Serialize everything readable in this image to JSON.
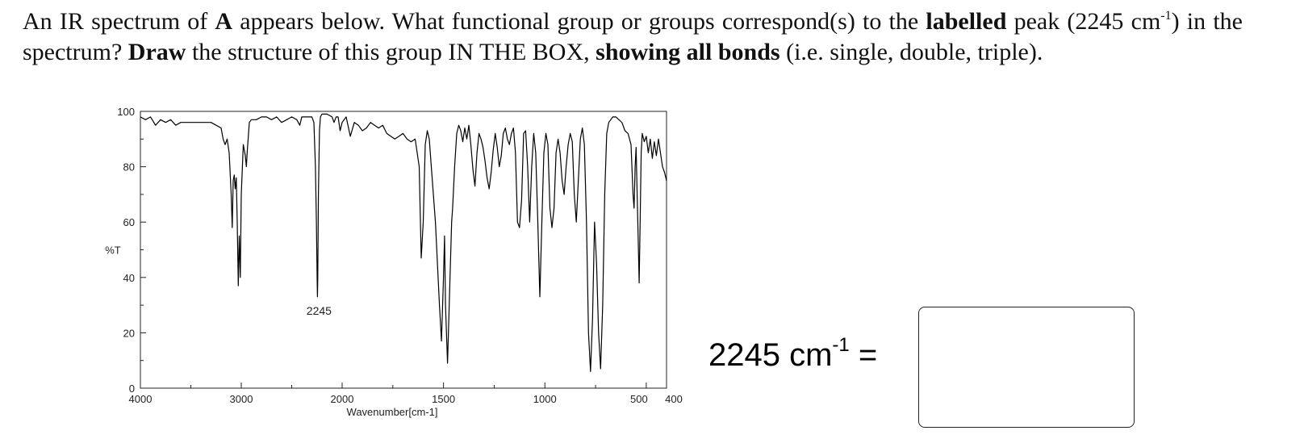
{
  "question": {
    "p1": "An IR spectrum of ",
    "compound": "A",
    "p2": " appears below.  What functional group or groups correspond(s) to the ",
    "bold1": "labelled",
    "p3": " peak (2245 cm",
    "sup": "-1",
    "p4": ") in the spectrum?  ",
    "bold2": "Draw",
    "p5": " the structure of this group IN THE BOX, ",
    "bold3": "showing all bonds",
    "p6": " (i.e. single, double, triple)."
  },
  "answer": {
    "label_main": "2245 cm",
    "label_sup": "-1",
    "label_tail": " =",
    "box_content": ""
  },
  "chart_data": {
    "type": "line",
    "title": "",
    "xlabel": "Wavenumber[cm-1]",
    "ylabel": "%T",
    "xlim": [
      4000,
      400
    ],
    "ylim": [
      0,
      100
    ],
    "x_ticks": [
      4000,
      3000,
      2000,
      1500,
      1000,
      500,
      400
    ],
    "x_tick_labels": [
      "4000",
      "3000",
      "2000",
      "1500",
      "1000",
      "500",
      "400"
    ],
    "y_ticks": [
      0,
      20,
      40,
      60,
      80,
      100
    ],
    "y_tick_labels": [
      "0",
      "20",
      "40",
      "60",
      "80",
      "100"
    ],
    "x_scale": "linear 4000-2000, expanded below 2000",
    "grid": false,
    "legend": "none",
    "annotations": [
      {
        "text": "2245",
        "x": 2245,
        "y": 33
      }
    ],
    "series": [
      {
        "color": "#000000",
        "points": [
          [
            4000,
            98
          ],
          [
            3950,
            97
          ],
          [
            3900,
            98
          ],
          [
            3850,
            95
          ],
          [
            3800,
            97
          ],
          [
            3750,
            96
          ],
          [
            3700,
            97
          ],
          [
            3650,
            95
          ],
          [
            3600,
            96
          ],
          [
            3500,
            96
          ],
          [
            3400,
            96
          ],
          [
            3300,
            96
          ],
          [
            3250,
            95
          ],
          [
            3200,
            94
          ],
          [
            3180,
            90
          ],
          [
            3160,
            88
          ],
          [
            3140,
            90
          ],
          [
            3120,
            85
          ],
          [
            3100,
            70
          ],
          [
            3090,
            58
          ],
          [
            3080,
            75
          ],
          [
            3070,
            77
          ],
          [
            3060,
            72
          ],
          [
            3050,
            76
          ],
          [
            3040,
            60
          ],
          [
            3030,
            37
          ],
          [
            3020,
            55
          ],
          [
            3010,
            40
          ],
          [
            3000,
            70
          ],
          [
            2980,
            88
          ],
          [
            2960,
            84
          ],
          [
            2950,
            80
          ],
          [
            2940,
            86
          ],
          [
            2920,
            96
          ],
          [
            2900,
            97
          ],
          [
            2850,
            97
          ],
          [
            2800,
            98
          ],
          [
            2750,
            98
          ],
          [
            2700,
            97
          ],
          [
            2650,
            98
          ],
          [
            2600,
            96
          ],
          [
            2550,
            97
          ],
          [
            2500,
            98
          ],
          [
            2450,
            97
          ],
          [
            2420,
            95
          ],
          [
            2400,
            98
          ],
          [
            2350,
            98
          ],
          [
            2300,
            98
          ],
          [
            2280,
            96
          ],
          [
            2265,
            80
          ],
          [
            2255,
            60
          ],
          [
            2248,
            40
          ],
          [
            2245,
            33
          ],
          [
            2242,
            40
          ],
          [
            2235,
            70
          ],
          [
            2225,
            93
          ],
          [
            2215,
            98
          ],
          [
            2200,
            99
          ],
          [
            2150,
            99
          ],
          [
            2100,
            98
          ],
          [
            2080,
            96
          ],
          [
            2060,
            98
          ],
          [
            2040,
            98
          ],
          [
            2020,
            93
          ],
          [
            2000,
            96
          ],
          [
            1980,
            98
          ],
          [
            1960,
            91
          ],
          [
            1940,
            96
          ],
          [
            1920,
            95
          ],
          [
            1900,
            93
          ],
          [
            1880,
            94
          ],
          [
            1860,
            96
          ],
          [
            1840,
            95
          ],
          [
            1820,
            94
          ],
          [
            1800,
            95
          ],
          [
            1780,
            92
          ],
          [
            1760,
            91
          ],
          [
            1740,
            90
          ],
          [
            1720,
            91
          ],
          [
            1700,
            92
          ],
          [
            1680,
            90
          ],
          [
            1660,
            89
          ],
          [
            1640,
            90
          ],
          [
            1620,
            80
          ],
          [
            1610,
            47
          ],
          [
            1600,
            60
          ],
          [
            1590,
            88
          ],
          [
            1580,
            93
          ],
          [
            1570,
            90
          ],
          [
            1560,
            80
          ],
          [
            1540,
            60
          ],
          [
            1520,
            30
          ],
          [
            1510,
            17
          ],
          [
            1500,
            40
          ],
          [
            1495,
            55
          ],
          [
            1490,
            30
          ],
          [
            1480,
            9
          ],
          [
            1470,
            35
          ],
          [
            1460,
            60
          ],
          [
            1455,
            65
          ],
          [
            1445,
            80
          ],
          [
            1435,
            92
          ],
          [
            1425,
            95
          ],
          [
            1415,
            93
          ],
          [
            1405,
            89
          ],
          [
            1395,
            94
          ],
          [
            1385,
            90
          ],
          [
            1375,
            95
          ],
          [
            1365,
            88
          ],
          [
            1355,
            79
          ],
          [
            1345,
            73
          ],
          [
            1335,
            85
          ],
          [
            1325,
            92
          ],
          [
            1315,
            90
          ],
          [
            1305,
            87
          ],
          [
            1295,
            82
          ],
          [
            1285,
            76
          ],
          [
            1275,
            72
          ],
          [
            1265,
            78
          ],
          [
            1255,
            86
          ],
          [
            1245,
            92
          ],
          [
            1235,
            87
          ],
          [
            1225,
            80
          ],
          [
            1215,
            84
          ],
          [
            1205,
            92
          ],
          [
            1195,
            94
          ],
          [
            1185,
            90
          ],
          [
            1175,
            88
          ],
          [
            1165,
            92
          ],
          [
            1155,
            94
          ],
          [
            1145,
            85
          ],
          [
            1135,
            60
          ],
          [
            1125,
            58
          ],
          [
            1115,
            68
          ],
          [
            1105,
            92
          ],
          [
            1095,
            93
          ],
          [
            1085,
            80
          ],
          [
            1075,
            60
          ],
          [
            1065,
            80
          ],
          [
            1055,
            92
          ],
          [
            1045,
            85
          ],
          [
            1035,
            60
          ],
          [
            1025,
            33
          ],
          [
            1015,
            60
          ],
          [
            1005,
            85
          ],
          [
            995,
            92
          ],
          [
            985,
            88
          ],
          [
            975,
            65
          ],
          [
            965,
            58
          ],
          [
            955,
            65
          ],
          [
            945,
            85
          ],
          [
            935,
            90
          ],
          [
            925,
            85
          ],
          [
            915,
            75
          ],
          [
            905,
            70
          ],
          [
            895,
            80
          ],
          [
            885,
            88
          ],
          [
            875,
            92
          ],
          [
            865,
            89
          ],
          [
            855,
            70
          ],
          [
            845,
            60
          ],
          [
            835,
            75
          ],
          [
            825,
            90
          ],
          [
            815,
            94
          ],
          [
            805,
            88
          ],
          [
            795,
            60
          ],
          [
            785,
            20
          ],
          [
            775,
            6
          ],
          [
            765,
            25
          ],
          [
            755,
            60
          ],
          [
            745,
            45
          ],
          [
            735,
            20
          ],
          [
            725,
            7
          ],
          [
            715,
            30
          ],
          [
            705,
            70
          ],
          [
            695,
            92
          ],
          [
            685,
            96
          ],
          [
            675,
            97
          ],
          [
            665,
            98
          ],
          [
            650,
            98
          ],
          [
            635,
            97
          ],
          [
            620,
            96
          ],
          [
            605,
            93
          ],
          [
            590,
            92
          ],
          [
            575,
            88
          ],
          [
            565,
            70
          ],
          [
            560,
            65
          ],
          [
            555,
            80
          ],
          [
            550,
            87
          ],
          [
            545,
            70
          ],
          [
            540,
            55
          ],
          [
            535,
            38
          ],
          [
            530,
            60
          ],
          [
            525,
            85
          ],
          [
            520,
            92
          ],
          [
            510,
            89
          ],
          [
            500,
            91
          ],
          [
            490,
            85
          ],
          [
            480,
            90
          ],
          [
            470,
            83
          ],
          [
            460,
            89
          ],
          [
            450,
            84
          ],
          [
            440,
            90
          ],
          [
            430,
            85
          ],
          [
            420,
            80
          ],
          [
            410,
            78
          ],
          [
            400,
            75
          ]
        ]
      }
    ]
  }
}
